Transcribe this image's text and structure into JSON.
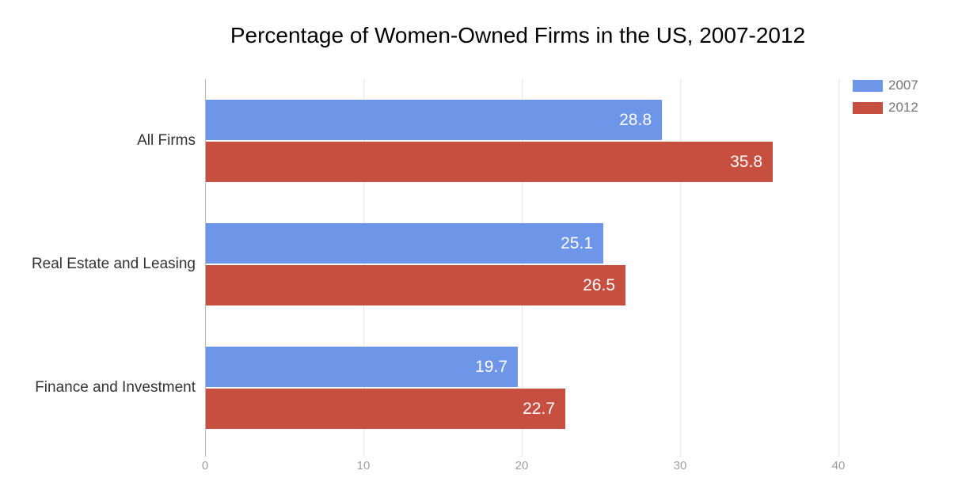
{
  "chart_data": {
    "type": "bar",
    "orientation": "horizontal",
    "title": "Percentage of Women-Owned Firms in the US, 2007-2012",
    "categories": [
      "All Firms",
      "Real Estate and Leasing",
      "Finance and Investment"
    ],
    "series": [
      {
        "name": "2007",
        "color": "#6d96e8",
        "values": [
          28.8,
          25.1,
          19.7
        ]
      },
      {
        "name": "2012",
        "color": "#c74f40",
        "values": [
          35.8,
          26.5,
          22.7
        ]
      }
    ],
    "xlabel": "",
    "ylabel": "",
    "xlim": [
      0,
      40
    ],
    "x_ticks": [
      0,
      10,
      20,
      30,
      40
    ],
    "grid": true,
    "value_labels": true,
    "legend_position": "right"
  },
  "styles": {
    "background": "#ffffff",
    "title_color": "#000000",
    "category_label_color": "#333333",
    "tick_label_color": "#9e9e9e",
    "legend_text_color": "#757575",
    "gridline_color": "#e6e6e6",
    "zero_line_color": "#b7b7b7",
    "value_label_color": "#ffffff"
  }
}
